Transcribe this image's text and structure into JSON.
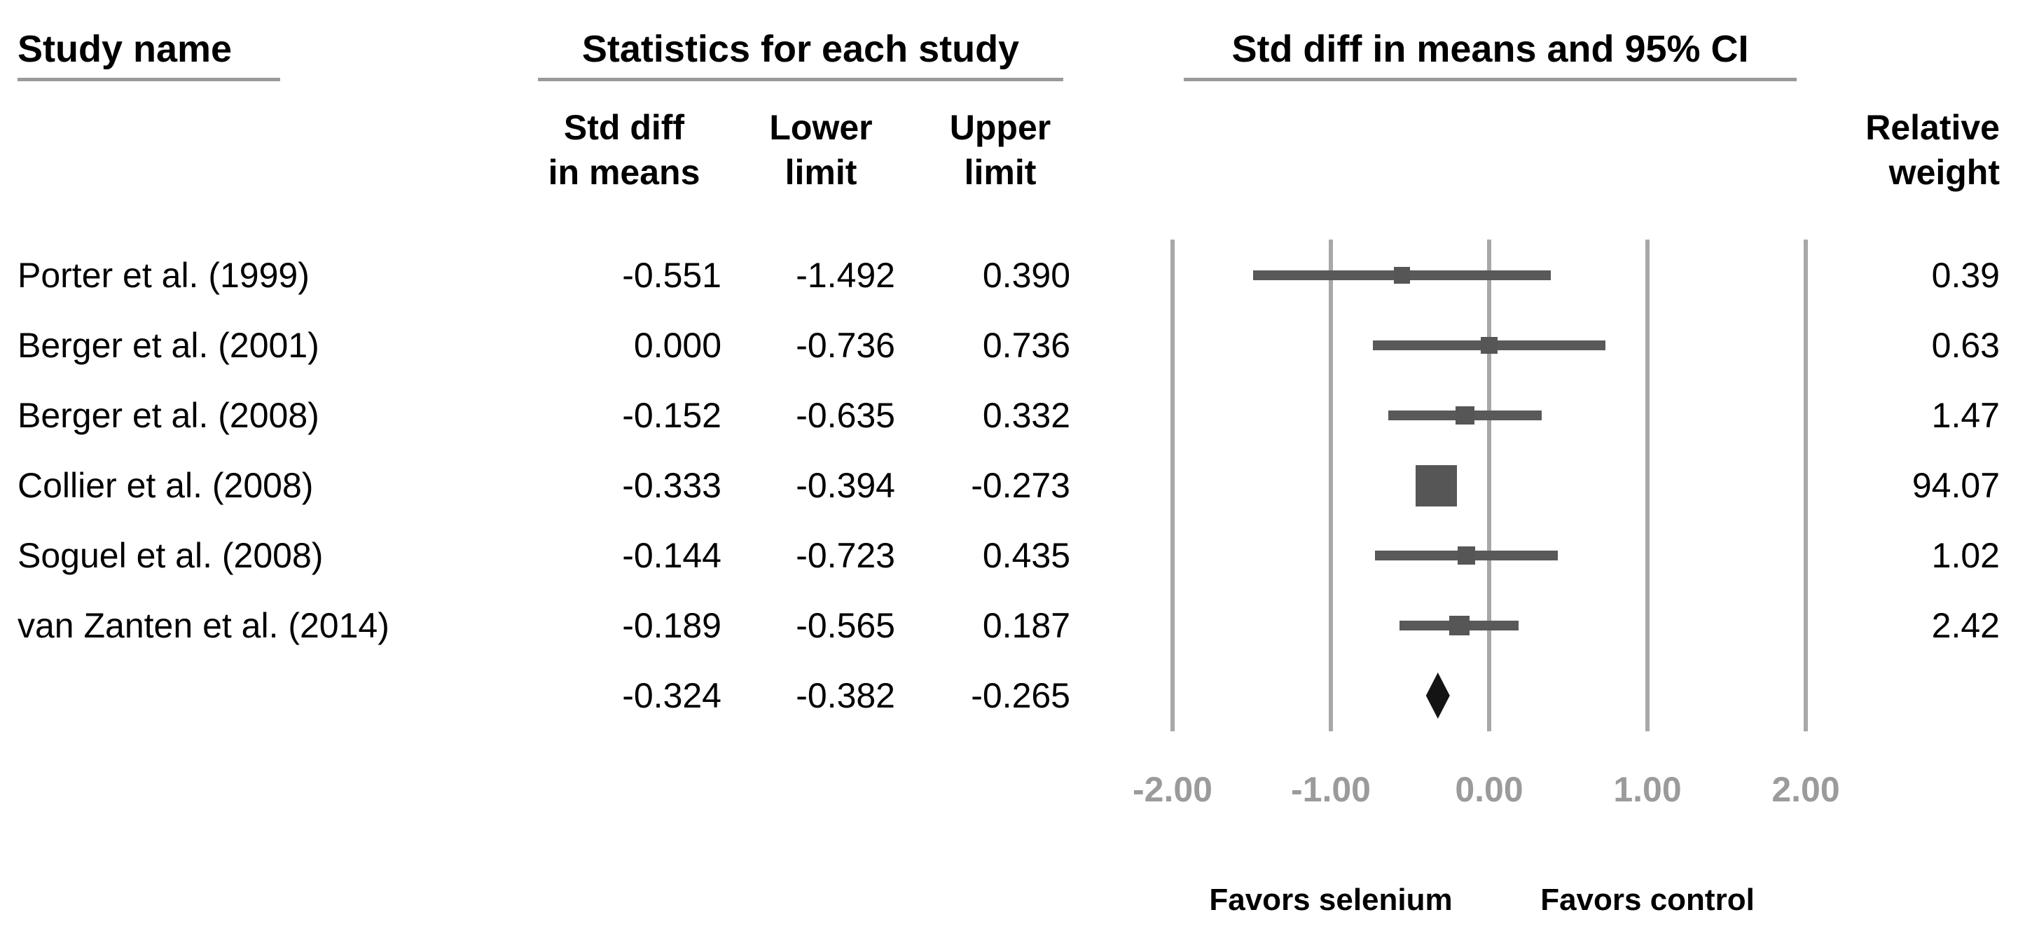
{
  "headers": {
    "study_name": "Study name",
    "stats": "Statistics for each study",
    "plot": "Std diff in means and 95% CI"
  },
  "columns": {
    "std_diff_line1": "Std diff",
    "std_diff_line2": "in means",
    "lower_line1": "Lower",
    "lower_line2": "limit",
    "upper_line1": "Upper",
    "upper_line2": "limit",
    "relative_line1": "Relative",
    "relative_line2": "weight"
  },
  "table": {
    "rows": [
      {
        "name": "Porter et al. (1999)",
        "std_diff": "-0.551",
        "lower": "-1.492",
        "upper": "0.390",
        "weight": "0.39"
      },
      {
        "name": "Berger et al. (2001)",
        "std_diff": "0.000",
        "lower": "-0.736",
        "upper": "0.736",
        "weight": "0.63"
      },
      {
        "name": "Berger et al. (2008)",
        "std_diff": "-0.152",
        "lower": "-0.635",
        "upper": "0.332",
        "weight": "1.47"
      },
      {
        "name": "Collier et al. (2008)",
        "std_diff": "-0.333",
        "lower": "-0.394",
        "upper": "-0.273",
        "weight": "94.07"
      },
      {
        "name": "Soguel et al. (2008)",
        "std_diff": "-0.144",
        "lower": "-0.723",
        "upper": "0.435",
        "weight": "1.02"
      },
      {
        "name": "van Zanten et al. (2014)",
        "std_diff": "-0.189",
        "lower": "-0.565",
        "upper": "0.187",
        "weight": "2.42"
      }
    ],
    "overall_row": {
      "std_diff": "-0.324",
      "lower": "-0.382",
      "upper": "-0.265"
    }
  },
  "axis": {
    "tick_labels": [
      "-2.00",
      "-1.00",
      "0.00",
      "1.00",
      "2.00"
    ]
  },
  "favors": {
    "left": "Favors selenium",
    "right": "Favors control"
  },
  "colors": {
    "ci_bar": "#595959",
    "marker": "#565656",
    "diamond": "#141414",
    "gridline": "#a8a8a8",
    "axis_text": "#9b9b9b",
    "underline": "#9a9a9a"
  },
  "chart_data": {
    "type": "forest",
    "title": "Std diff in means and 95% CI",
    "x_ticks": [
      {
        "value": -2,
        "label": "-2.00"
      },
      {
        "value": -1,
        "label": "-1.00"
      },
      {
        "value": 0,
        "label": "0.00"
      },
      {
        "value": 1,
        "label": "1.00"
      },
      {
        "value": 2,
        "label": "2.00"
      }
    ],
    "x_range": [
      -2.0,
      2.0
    ],
    "grid": true,
    "marker_shape": "square",
    "overall_shape": "diamond",
    "effect_measure": "Std diff in means",
    "studies": [
      {
        "name": "Porter et al. (1999)",
        "mean": -0.551,
        "lower": -1.492,
        "upper": 0.39,
        "weight": 0.39
      },
      {
        "name": "Berger et al. (2001)",
        "mean": 0.0,
        "lower": -0.736,
        "upper": 0.736,
        "weight": 0.63
      },
      {
        "name": "Berger et al. (2008)",
        "mean": -0.152,
        "lower": -0.635,
        "upper": 0.332,
        "weight": 1.47
      },
      {
        "name": "Collier et al. (2008)",
        "mean": -0.333,
        "lower": -0.394,
        "upper": -0.273,
        "weight": 94.07
      },
      {
        "name": "Soguel et al. (2008)",
        "mean": -0.144,
        "lower": -0.723,
        "upper": 0.435,
        "weight": 1.02
      },
      {
        "name": "van Zanten et al. (2014)",
        "mean": -0.189,
        "lower": -0.565,
        "upper": 0.187,
        "weight": 2.42
      }
    ],
    "overall": {
      "mean": -0.324,
      "lower": -0.382,
      "upper": -0.265
    },
    "favors_left": "Favors selenium",
    "favors_right": "Favors control"
  }
}
